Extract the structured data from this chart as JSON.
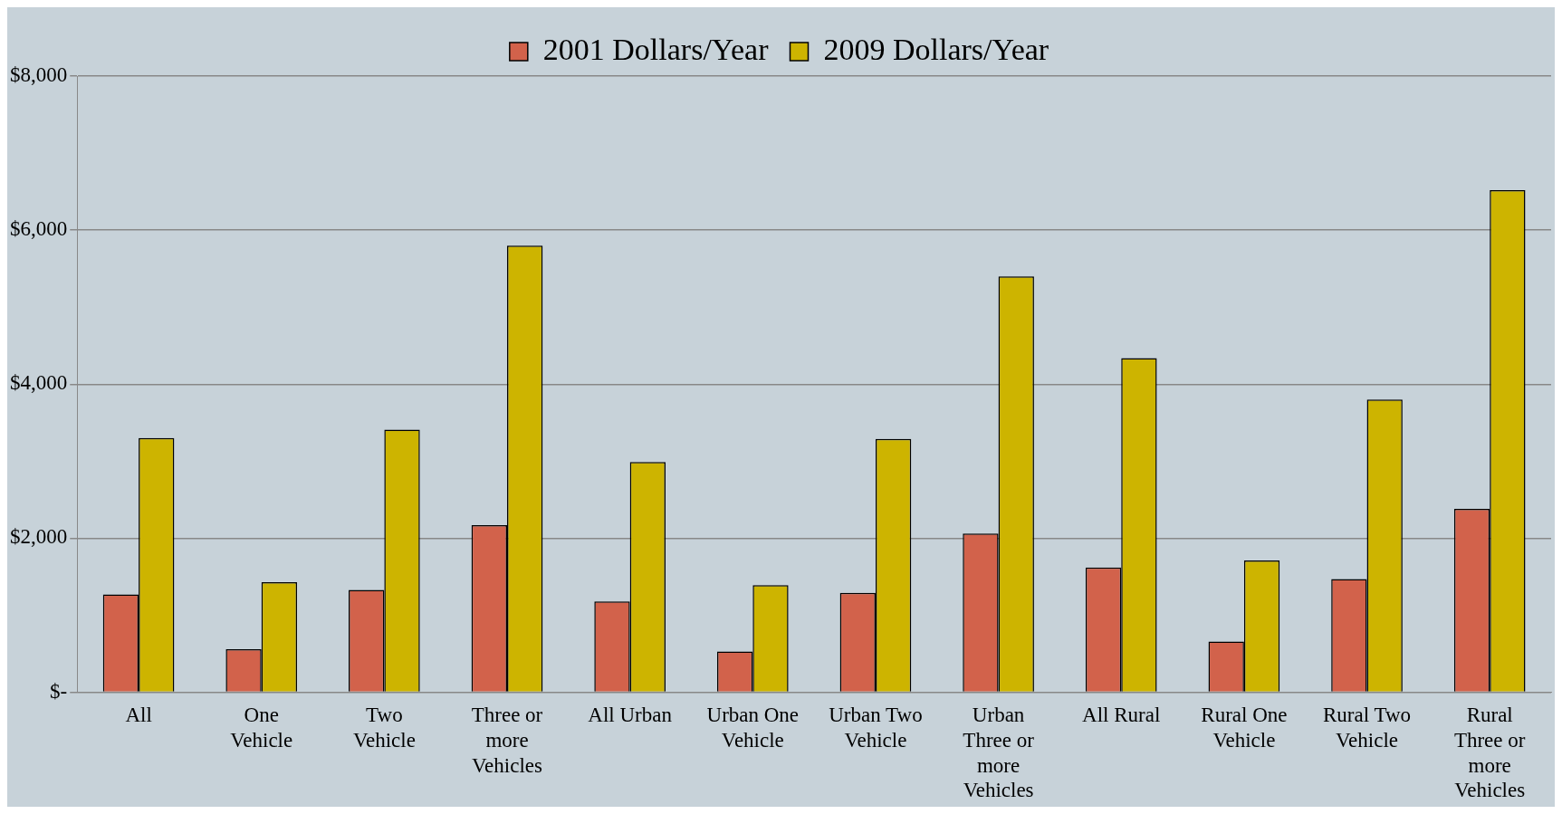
{
  "chart_data": {
    "type": "bar",
    "categories": [
      "All",
      "One Vehicle",
      "Two Vehicle",
      "Three or more Vehicles",
      "All Urban",
      "Urban One Vehicle",
      "Urban Two Vehicle",
      "Urban Three or more Vehicles",
      "All Rural",
      "Rural One Vehicle",
      "Rural Two Vehicle",
      "Rural Three or more Vehicles"
    ],
    "series": [
      {
        "name": "2001 Dollars/Year",
        "color": "#d2624b",
        "values": [
          1270,
          560,
          1330,
          2170,
          1180,
          530,
          1290,
          2060,
          1620,
          660,
          1470,
          2380
        ]
      },
      {
        "name": "2009 Dollars/Year",
        "color": "#cdb400",
        "values": [
          3300,
          1430,
          3410,
          5800,
          2990,
          1390,
          3290,
          5400,
          4340,
          1710,
          3800,
          6520
        ]
      }
    ],
    "ylim": [
      0,
      8000
    ],
    "yticks": [
      {
        "value": 0,
        "label": "$-"
      },
      {
        "value": 2000,
        "label": "$2,000"
      },
      {
        "value": 4000,
        "label": "$4,000"
      },
      {
        "value": 6000,
        "label": "$6,000"
      },
      {
        "value": 8000,
        "label": "$8,000"
      }
    ],
    "grid": "y",
    "legend": "top"
  }
}
